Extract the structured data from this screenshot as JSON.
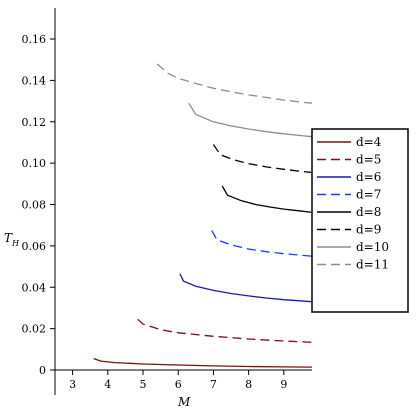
{
  "chart_data": {
    "type": "line",
    "xlabel": "M",
    "ylabel_main": "T",
    "ylabel_sub": "H",
    "xlim": [
      2.5,
      9.8
    ],
    "ylim": [
      0,
      0.175
    ],
    "xticks": [
      3,
      4,
      5,
      6,
      7,
      8,
      9
    ],
    "xtick_labels": [
      "3",
      "4",
      "5",
      "6",
      "7",
      "8",
      "9"
    ],
    "yticks": [
      0,
      0.02,
      0.04,
      0.06,
      0.08,
      0.1,
      0.12,
      0.14,
      0.16
    ],
    "ytick_labels": [
      "0",
      "0.02",
      "0.04",
      "0.06",
      "0.08",
      "0.10",
      "0.12",
      "0.14",
      "0.16"
    ],
    "legend_position": "right",
    "series": [
      {
        "name": "d=4",
        "color": "#7a1010",
        "dash": "solid",
        "x": [
          3.6,
          3.8,
          4.2,
          5.0,
          6.0,
          7.0,
          8.0,
          9.0,
          9.8
        ],
        "y": [
          0.0055,
          0.0043,
          0.0036,
          0.0029,
          0.0024,
          0.002,
          0.0017,
          0.0015,
          0.0014
        ]
      },
      {
        "name": "d=5",
        "color": "#7a1010",
        "dash": "dashed",
        "x": [
          4.85,
          5.0,
          5.5,
          6.0,
          7.0,
          8.0,
          9.0,
          9.8
        ],
        "y": [
          0.0245,
          0.0222,
          0.0195,
          0.018,
          0.0163,
          0.015,
          0.014,
          0.0134
        ]
      },
      {
        "name": "d=6",
        "color": "#1a1aa8",
        "dash": "solid",
        "x": [
          6.05,
          6.15,
          6.5,
          7.0,
          7.5,
          8.0,
          8.5,
          9.0,
          9.8
        ],
        "y": [
          0.0465,
          0.043,
          0.0405,
          0.0385,
          0.037,
          0.0358,
          0.0348,
          0.034,
          0.033
        ]
      },
      {
        "name": "d=7",
        "color": "#1a3aff",
        "dash": "dashed",
        "x": [
          6.95,
          7.1,
          7.5,
          8.0,
          8.5,
          9.0,
          9.8
        ],
        "y": [
          0.0675,
          0.063,
          0.0605,
          0.0585,
          0.0572,
          0.0562,
          0.055
        ]
      },
      {
        "name": "d=8",
        "color": "#000000",
        "dash": "solid",
        "x": [
          7.25,
          7.4,
          7.8,
          8.2,
          8.6,
          9.0,
          9.4,
          9.8
        ],
        "y": [
          0.089,
          0.0845,
          0.0818,
          0.08,
          0.0788,
          0.0778,
          0.077,
          0.0762
        ]
      },
      {
        "name": "d=9",
        "color": "#000000",
        "dash": "dashed",
        "x": [
          7.0,
          7.2,
          7.6,
          8.0,
          8.5,
          9.0,
          9.5,
          9.8
        ],
        "y": [
          0.109,
          0.104,
          0.1015,
          0.0998,
          0.0982,
          0.097,
          0.096,
          0.0955
        ]
      },
      {
        "name": "d=10",
        "color": "#8f8f8f",
        "dash": "solid",
        "x": [
          6.3,
          6.5,
          7.0,
          7.5,
          8.0,
          8.5,
          9.0,
          9.5,
          9.8
        ],
        "y": [
          0.129,
          0.1235,
          0.12,
          0.118,
          0.1165,
          0.1152,
          0.1142,
          0.1133,
          0.1128
        ]
      },
      {
        "name": "d=11",
        "color": "#8f8f8f",
        "dash": "dashed",
        "x": [
          5.4,
          5.7,
          6.0,
          6.5,
          7.0,
          7.5,
          8.0,
          8.5,
          9.0,
          9.5,
          9.8
        ],
        "y": [
          0.148,
          0.1435,
          0.141,
          0.1385,
          0.1362,
          0.1345,
          0.133,
          0.1318,
          0.1305,
          0.1295,
          0.129
        ]
      }
    ]
  }
}
